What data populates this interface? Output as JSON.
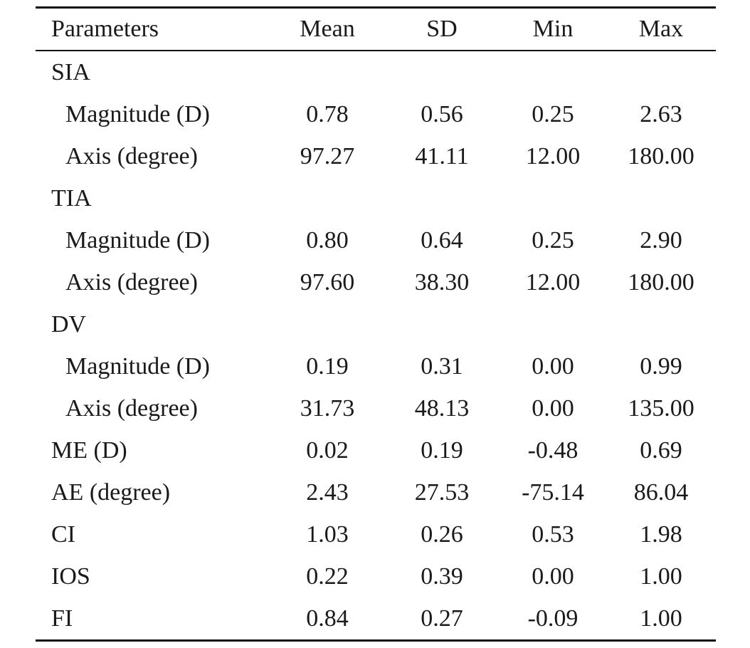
{
  "table": {
    "headers": {
      "parameters": "Parameters",
      "mean": "Mean",
      "sd": "SD",
      "min": "Min",
      "max": "Max"
    },
    "rows": [
      {
        "label": "SIA",
        "indent": false,
        "mean": "",
        "sd": "",
        "min": "",
        "max": ""
      },
      {
        "label": "Magnitude (D)",
        "indent": true,
        "mean": "0.78",
        "sd": "0.56",
        "min": "0.25",
        "max": "2.63"
      },
      {
        "label": "Axis (degree)",
        "indent": true,
        "mean": "97.27",
        "sd": "41.11",
        "min": "12.00",
        "max": "180.00"
      },
      {
        "label": "TIA",
        "indent": false,
        "mean": "",
        "sd": "",
        "min": "",
        "max": ""
      },
      {
        "label": "Magnitude (D)",
        "indent": true,
        "mean": "0.80",
        "sd": "0.64",
        "min": "0.25",
        "max": "2.90"
      },
      {
        "label": "Axis (degree)",
        "indent": true,
        "mean": "97.60",
        "sd": "38.30",
        "min": "12.00",
        "max": "180.00"
      },
      {
        "label": "DV",
        "indent": false,
        "mean": "",
        "sd": "",
        "min": "",
        "max": ""
      },
      {
        "label": "Magnitude (D)",
        "indent": true,
        "mean": "0.19",
        "sd": "0.31",
        "min": "0.00",
        "max": "0.99"
      },
      {
        "label": "Axis (degree)",
        "indent": true,
        "mean": "31.73",
        "sd": "48.13",
        "min": "0.00",
        "max": "135.00"
      },
      {
        "label": "ME (D)",
        "indent": false,
        "mean": "0.02",
        "sd": "0.19",
        "min": "-0.48",
        "max": "0.69"
      },
      {
        "label": "AE (degree)",
        "indent": false,
        "mean": "2.43",
        "sd": "27.53",
        "min": "-75.14",
        "max": "86.04"
      },
      {
        "label": "CI",
        "indent": false,
        "mean": "1.03",
        "sd": "0.26",
        "min": "0.53",
        "max": "1.98"
      },
      {
        "label": "IOS",
        "indent": false,
        "mean": "0.22",
        "sd": "0.39",
        "min": "0.00",
        "max": "1.00"
      },
      {
        "label": "FI",
        "indent": false,
        "mean": "0.84",
        "sd": "0.27",
        "min": "-0.09",
        "max": "1.00"
      }
    ]
  }
}
